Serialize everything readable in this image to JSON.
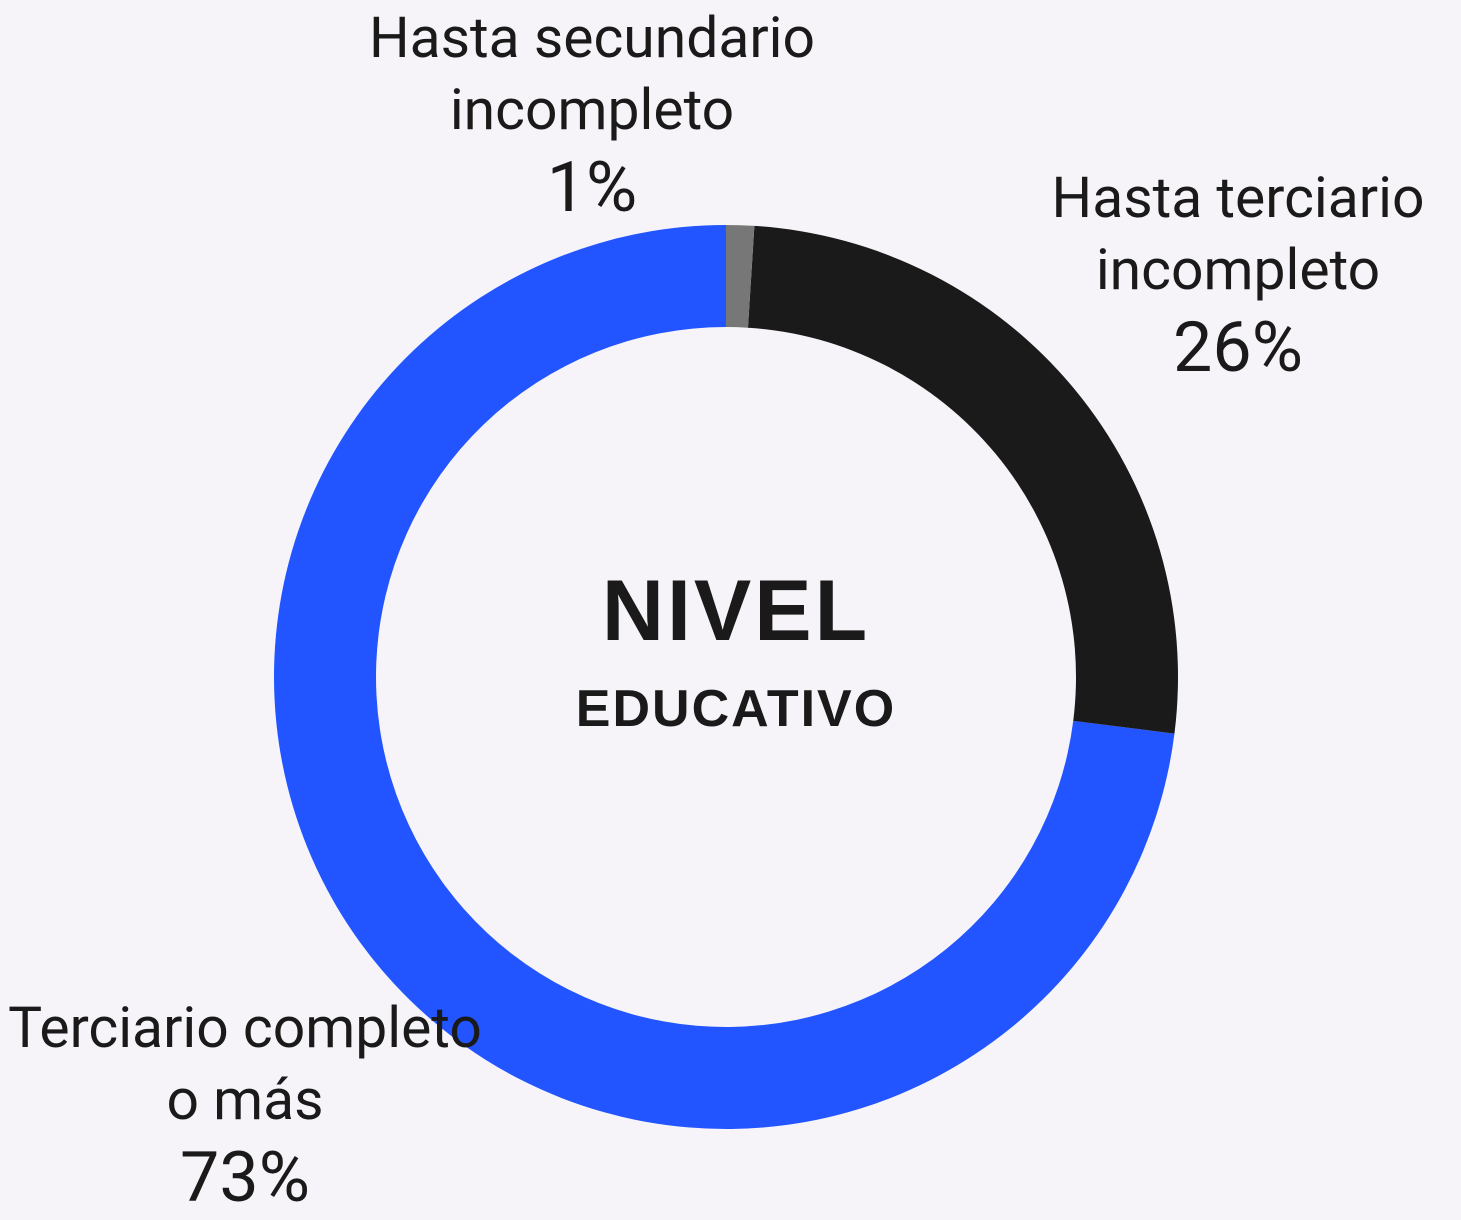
{
  "chart_data": {
    "type": "donut",
    "title": "NIVEL",
    "subtitle": "EDUCATIVO",
    "categories": [
      "Hasta secundario incompleto",
      "Hasta terciario incompleto",
      "Terciario completo o más"
    ],
    "values": [
      1,
      26,
      73
    ],
    "value_labels": [
      "1%",
      "26%",
      "73%"
    ],
    "colors": [
      "#777777",
      "#1a1a1a",
      "#2255ff"
    ]
  }
}
